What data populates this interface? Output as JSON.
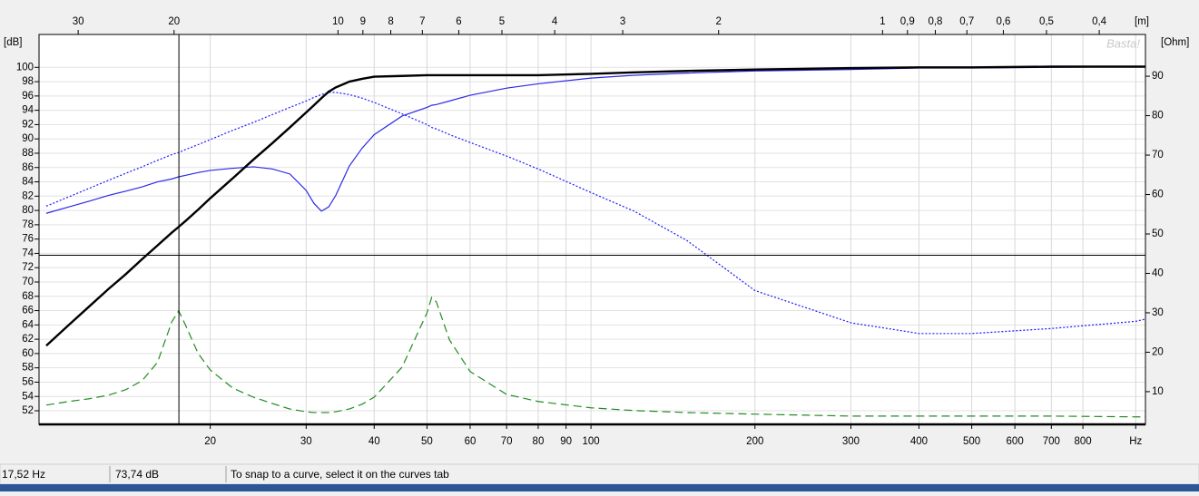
{
  "chart_data": {
    "type": "line",
    "x_scale": "log",
    "y_label": "[dB]",
    "y2_label": "[Ohm]",
    "x2_label": "[m]",
    "watermark": "Basta!",
    "grid": true,
    "xlim": [
      9.7,
      1042
    ],
    "ylim": [
      50.1,
      104.6
    ],
    "y2lim": [
      1.7,
      100.6
    ],
    "x2lim": [
      35.4,
      0.329
    ],
    "xticks": [
      20,
      30,
      40,
      50,
      60,
      70,
      80,
      90,
      100,
      200,
      300,
      400,
      500,
      600,
      700,
      800,
      {
        "value": 1000,
        "label": "Hz"
      }
    ],
    "yticks": [
      52,
      54,
      56,
      58,
      60,
      62,
      64,
      66,
      68,
      70,
      72,
      74,
      76,
      78,
      80,
      82,
      84,
      86,
      88,
      90,
      92,
      94,
      96,
      98,
      100
    ],
    "y2ticks": [
      10,
      20,
      30,
      40,
      50,
      60,
      70,
      80,
      90
    ],
    "x2ticks": [
      30,
      20,
      10,
      9,
      8,
      7,
      6,
      5,
      4,
      3,
      2,
      1,
      {
        "value": 0.9,
        "label": "0,9"
      },
      {
        "value": 0.8,
        "label": "0,8"
      },
      {
        "value": 0.7,
        "label": "0,7"
      },
      {
        "value": 0.6,
        "label": "0,6"
      },
      {
        "value": 0.5,
        "label": "0,5"
      },
      {
        "value": 0.4,
        "label": "0,4"
      }
    ],
    "x": [
      10,
      11,
      12,
      13,
      14,
      15,
      16,
      17,
      17.5,
      18,
      19,
      20,
      22,
      24,
      26,
      28,
      30,
      31,
      32,
      33,
      34,
      36,
      38,
      40,
      45,
      50,
      51,
      52,
      55,
      60,
      70,
      80,
      100,
      120,
      150,
      200,
      300,
      400,
      500,
      700,
      1000,
      1040
    ],
    "series": [
      {
        "color": "#1a1aff",
        "style": "dotted",
        "width": 1.2,
        "axis": "y",
        "values": [
          80.6,
          81.9,
          83.1,
          84.2,
          85.2,
          86.1,
          87.0,
          87.8,
          88.1,
          88.5,
          89.2,
          89.9,
          91.2,
          92.3,
          93.4,
          94.4,
          95.3,
          95.8,
          96.2,
          96.5,
          96.5,
          96.2,
          95.7,
          95.1,
          93.5,
          92.0,
          91.6,
          91.4,
          90.6,
          89.5,
          87.6,
          85.8,
          82.5,
          79.9,
          75.8,
          68.8,
          64.3,
          62.8,
          62.8,
          63.5,
          64.5,
          64.8
        ]
      },
      {
        "color": "#2a2ae6",
        "style": "solid",
        "width": 1.2,
        "axis": "y",
        "values": [
          79.6,
          80.5,
          81.3,
          82.1,
          82.7,
          83.3,
          84.0,
          84.4,
          84.7,
          84.9,
          85.3,
          85.6,
          85.9,
          86.1,
          85.8,
          85.1,
          82.8,
          81.0,
          79.9,
          80.5,
          82.1,
          86.2,
          88.7,
          90.6,
          93.2,
          94.4,
          94.7,
          94.8,
          95.3,
          96.1,
          97.1,
          97.7,
          98.5,
          98.9,
          99.2,
          99.5,
          99.7,
          99.9,
          99.9,
          100,
          100.1,
          100.1
        ]
      },
      {
        "color": "#228b22",
        "style": "dashed",
        "width": 1.2,
        "axis": "y2",
        "values": [
          6.6,
          7.5,
          8.2,
          9.1,
          10.5,
          12.8,
          17.4,
          27.7,
          30.5,
          27.0,
          19.7,
          15.5,
          10.9,
          8.6,
          7.0,
          5.6,
          4.9,
          4.7,
          4.7,
          4.7,
          4.9,
          5.6,
          6.8,
          8.6,
          16.2,
          30.0,
          33.9,
          32.8,
          23.1,
          15.1,
          9.3,
          7.5,
          5.9,
          5.2,
          4.7,
          4.3,
          3.8,
          3.8,
          3.8,
          3.8,
          3.6,
          3.6
        ]
      },
      {
        "color": "#000000",
        "style": "solid",
        "width": 2.4,
        "axis": "y",
        "values": [
          61.1,
          64.0,
          66.6,
          69.0,
          71.1,
          73.2,
          75.1,
          76.9,
          77.7,
          78.5,
          80.1,
          81.7,
          84.5,
          87.1,
          89.4,
          91.6,
          93.7,
          94.7,
          95.7,
          96.6,
          97.2,
          98.0,
          98.4,
          98.7,
          98.8,
          98.9,
          98.9,
          98.9,
          98.9,
          98.9,
          98.9,
          98.9,
          99.1,
          99.3,
          99.5,
          99.7,
          99.9,
          100,
          100,
          100.1,
          100.1,
          100.1
        ]
      }
    ],
    "cursor": {
      "x": 17.52,
      "y": 73.74
    }
  },
  "status_bar": {
    "frequency": "17,52 Hz",
    "level": "73,74 dB",
    "message": "To snap to a curve, select it on the curves tab"
  }
}
